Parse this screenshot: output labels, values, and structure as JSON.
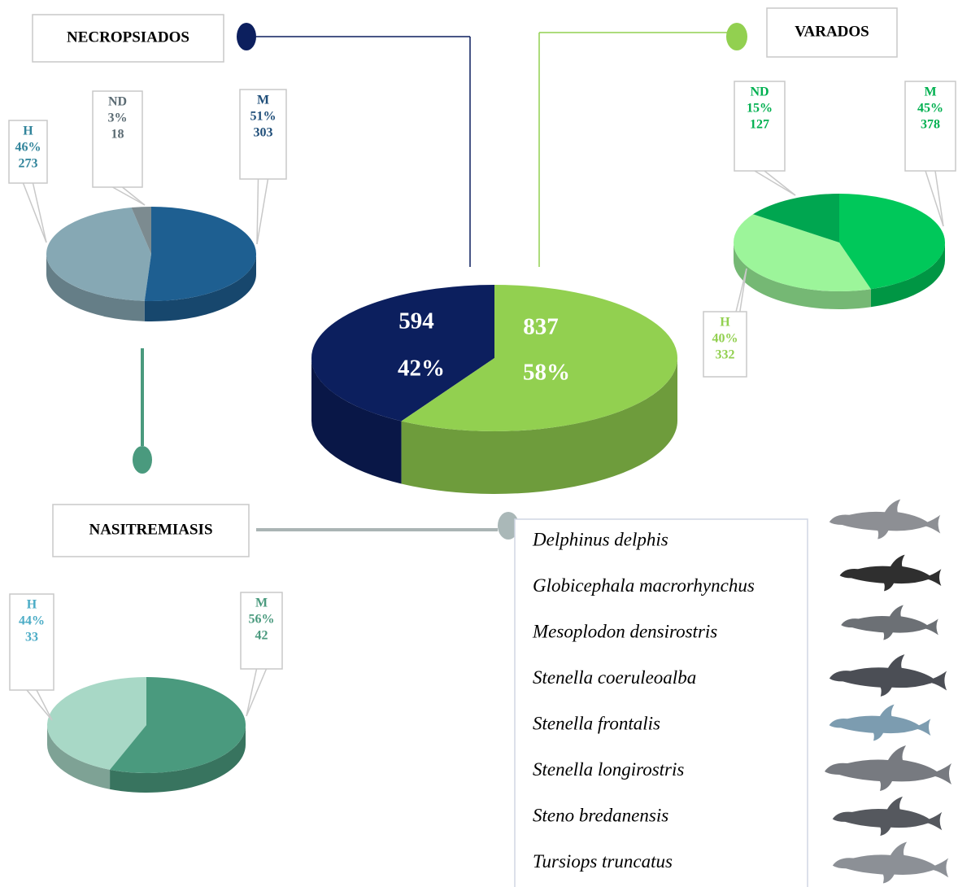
{
  "chart_data": [
    {
      "type": "pie",
      "values": [
        594,
        837
      ],
      "percentages": [
        42,
        58
      ],
      "percentage_labels": [
        "42%",
        "58%"
      ],
      "colors": [
        "#0c1f5e",
        "#92d050"
      ]
    },
    {
      "type": "pie",
      "title": "NECROPSIADOS",
      "categories": [
        "H",
        "ND",
        "M"
      ],
      "values": [
        273,
        18,
        303
      ],
      "percentages": [
        46,
        3,
        51
      ],
      "percentage_labels": [
        "46%",
        "3%",
        "51%"
      ],
      "colors": [
        "#86a8b4",
        "#7c8b90",
        "#1e5f91"
      ],
      "label_colors": [
        "#31849b",
        "#5b6b73",
        "#1f4e79"
      ]
    },
    {
      "type": "pie",
      "title": "VARADOS",
      "categories": [
        "H",
        "ND",
        "M"
      ],
      "values": [
        332,
        127,
        378
      ],
      "percentages": [
        40,
        15,
        45
      ],
      "percentage_labels": [
        "40%",
        "15%",
        "45%"
      ],
      "colors": [
        "#9cf59a",
        "#00a650",
        "#00c85a"
      ],
      "label_colors": [
        "#92d050",
        "#00b050",
        "#00b050"
      ]
    },
    {
      "type": "pie",
      "title": "NASITREMIASIS",
      "categories": [
        "H",
        "M"
      ],
      "values": [
        33,
        42
      ],
      "percentages": [
        44,
        56
      ],
      "percentage_labels": [
        "44%",
        "56%"
      ],
      "colors": [
        "#a8d8c6",
        "#4a9a7e"
      ],
      "label_colors": [
        "#4bacc6",
        "#4a9a7e"
      ]
    }
  ],
  "species": [
    "Delphinus delphis",
    "Globicephala macrorhynchus",
    "Mesoplodon densirostris",
    "Stenella coeruleoalba",
    "Stenella frontalis",
    "Stenella longirostris",
    "Steno bredanensis",
    "Tursiops truncatus"
  ]
}
